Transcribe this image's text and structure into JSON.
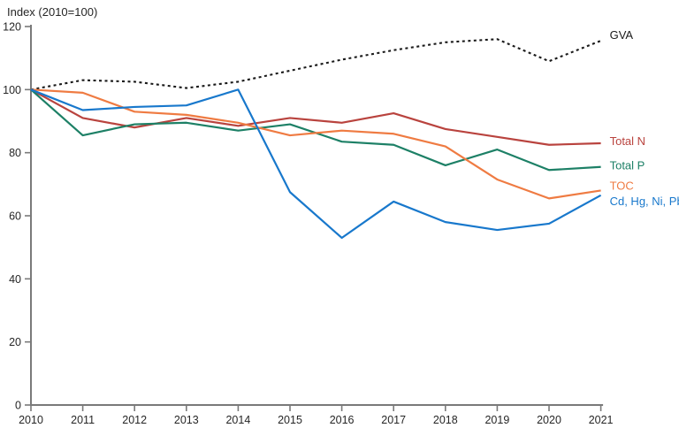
{
  "page": {
    "background": "#ffffff"
  },
  "chart_data": {
    "type": "line",
    "title": "Index (2010=100)",
    "xlabel": "",
    "ylabel": "Index (2010=100)",
    "x": [
      2010,
      2011,
      2012,
      2013,
      2014,
      2015,
      2016,
      2017,
      2018,
      2019,
      2020,
      2021
    ],
    "y_ticks": [
      0,
      20,
      40,
      60,
      80,
      100,
      120
    ],
    "ylim": [
      0,
      120
    ],
    "grid": false,
    "legend_position": "right-end-labels",
    "axis_color": "#7a7a7a",
    "text_color": "#262626",
    "series": [
      {
        "name": "GVA",
        "color": "#1a1a1a",
        "style": "dotted",
        "label_dy": -6,
        "values": [
          100,
          103,
          102.5,
          100.5,
          102.5,
          106,
          109.5,
          112.5,
          115,
          116,
          109,
          115.5
        ]
      },
      {
        "name": "Total N",
        "color": "#b9433e",
        "style": "solid",
        "label_dy": -2,
        "values": [
          100,
          91,
          88,
          91,
          88.5,
          91,
          89.5,
          92.5,
          87.5,
          85,
          82.5,
          83
        ]
      },
      {
        "name": "Total P",
        "color": "#1d8066",
        "style": "solid",
        "label_dy": -1,
        "values": [
          100,
          85.5,
          89,
          89.5,
          87,
          89,
          83.5,
          82.5,
          76,
          81,
          74.5,
          75.5
        ]
      },
      {
        "name": "TOC",
        "color": "#ef7b42",
        "style": "solid",
        "label_dy": -5,
        "values": [
          100,
          99,
          93,
          92,
          89.5,
          85.5,
          87,
          86,
          82,
          71.5,
          65.5,
          68
        ]
      },
      {
        "name": "Cd, Hg, Ni, Pb",
        "color": "#1878cc",
        "style": "solid",
        "label_dy": 7,
        "values": [
          100,
          93.5,
          94.5,
          95,
          100,
          67.5,
          53,
          64.5,
          58,
          55.5,
          57.5,
          66.5
        ]
      }
    ]
  }
}
